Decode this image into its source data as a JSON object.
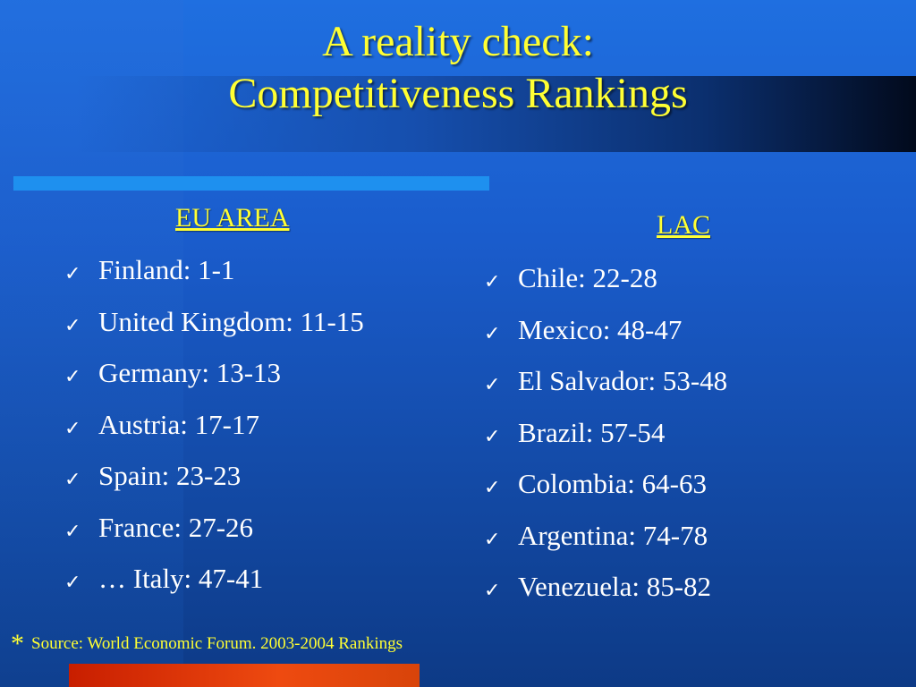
{
  "title": {
    "line1": "A reality check:",
    "line2": "Competitiveness Rankings"
  },
  "eu": {
    "heading": "EU AREA",
    "items": [
      "Finland: 1-1",
      "United Kingdom: 11-15",
      "Germany: 13-13",
      "Austria: 17-17",
      "Spain: 23-23",
      "France: 27-26",
      "… Italy: 47-41"
    ]
  },
  "lac": {
    "heading": "LAC",
    "items": [
      "Chile: 22-28",
      "Mexico: 48-47",
      "El Salvador: 53-48",
      "Brazil: 57-54",
      "Colombia: 64-63",
      "Argentina: 74-78",
      "Venezuela: 85-82"
    ]
  },
  "footnote": {
    "marker": "*",
    "text": "Source: World Economic Forum.  2003-2004 Rankings"
  },
  "icons": {
    "bullet": "checkmark-icon"
  },
  "colors": {
    "title": "#ffff33",
    "background": "#1a5ccc",
    "accent_bar": "#1e90ef",
    "bottom_bar": "#e03c0a"
  }
}
